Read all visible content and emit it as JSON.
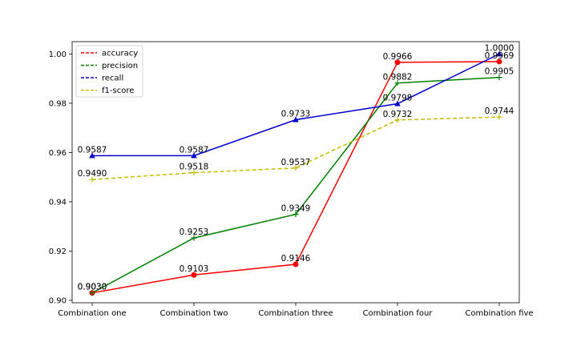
{
  "chart_data": {
    "type": "line",
    "categories": [
      "Combination one",
      "Combination two",
      "Combination three",
      "Combination four",
      "Combination five"
    ],
    "ylim": [
      0.899,
      1.005
    ],
    "yticks": [
      "0.90",
      "0.92",
      "0.94",
      "0.96",
      "0.98",
      "1.00"
    ],
    "grid": false,
    "legend_position": "top-left",
    "series": [
      {
        "name": "accuracy",
        "color": "#ff0000",
        "marker": "circle",
        "values": [
          0.903,
          0.9103,
          0.9146,
          0.9966,
          0.9969
        ],
        "labels": [
          "0.9030",
          "0.9103",
          "0.9146",
          "0.9966",
          "0.9969"
        ]
      },
      {
        "name": "precision",
        "color": "#008000",
        "marker": "plus",
        "values": [
          0.903,
          0.9253,
          0.9349,
          0.9882,
          0.9905
        ],
        "labels": [
          "0.9030",
          "0.9253",
          "0.9349",
          "0.9882",
          "0.9905"
        ]
      },
      {
        "name": "recall",
        "color": "#0000cc",
        "marker": "triangle",
        "values": [
          0.9587,
          0.9587,
          0.9733,
          0.9798,
          1.0
        ],
        "labels": [
          "0.9587",
          "0.9587",
          "0.9733",
          "0.9798",
          "1.0000"
        ]
      },
      {
        "name": "f1-score",
        "color": "#bfbf00",
        "marker": "plus",
        "values": [
          0.949,
          0.9518,
          0.9537,
          0.9732,
          0.9744
        ],
        "labels": [
          "0.9490",
          "0.9518",
          "0.9537",
          "0.9732",
          "0.9744"
        ]
      }
    ]
  }
}
